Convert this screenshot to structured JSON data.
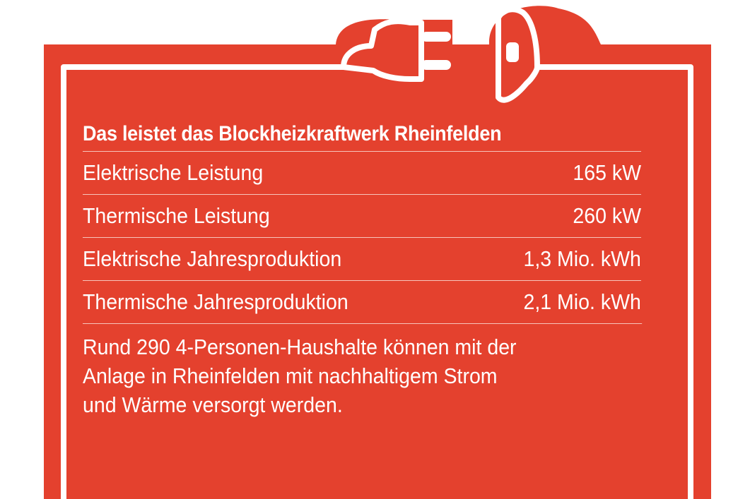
{
  "infobox": {
    "title": "Das leistet das Blockheizkraftwerk Rheinfelden",
    "rows": [
      {
        "label": "Elektrische Leistung",
        "value": "165 kW"
      },
      {
        "label": "Thermische Leistung",
        "value": "260 kW"
      },
      {
        "label": "Elektrische Jahresproduktion",
        "value": "1,3 Mio. kWh"
      },
      {
        "label": "Thermische Jahresproduktion",
        "value": "2,1 Mio. kWh"
      }
    ],
    "summary_lines": [
      "Rund 290 4-Personen-Haushalte können mit der",
      "Anlage in Rheinfelden mit nachhaltigem Strom",
      "und Wärme versorgt werden."
    ]
  },
  "graphics": {
    "plug_icon": "plug-icon",
    "socket_icon": "socket-icon"
  },
  "colors": {
    "background": "#e4412e",
    "foreground": "#ffffff"
  }
}
